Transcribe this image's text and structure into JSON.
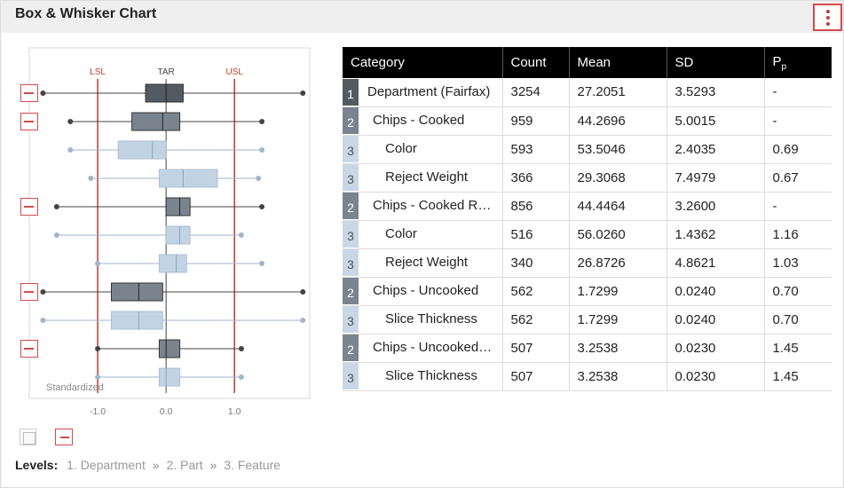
{
  "widget": {
    "title": "Box & Whisker Chart",
    "menu_icon": "vertical-ellipsis-icon"
  },
  "chart": {
    "spec_labels": {
      "lsl": "LSL",
      "tar": "TAR",
      "usl": "USL"
    },
    "spec_values": {
      "lsl": -1.0,
      "tar": 0.0,
      "usl": 1.0
    },
    "x_ticks": [
      "-1.0",
      "0.0",
      "1.0"
    ],
    "watermark": "Standardized",
    "colors": {
      "level1": "#525a62",
      "level2": "#7a848e",
      "level3": "#c2d4e4",
      "spec": "#c0392b"
    }
  },
  "chart_data": {
    "type": "box",
    "xlim": [
      -2.0,
      2.1
    ],
    "boxes": [
      {
        "level": 1,
        "whisker_low": -1.8,
        "q1": -0.3,
        "median": 0.0,
        "q3": 0.25,
        "whisker_high": 2.0,
        "collapsible": true
      },
      {
        "level": 2,
        "whisker_low": -1.4,
        "q1": -0.5,
        "median": -0.05,
        "q3": 0.2,
        "whisker_high": 1.4,
        "collapsible": true
      },
      {
        "level": 3,
        "whisker_low": -1.4,
        "q1": -0.7,
        "median": -0.2,
        "q3": 0.0,
        "whisker_high": 1.4,
        "collapsible": false
      },
      {
        "level": 3,
        "whisker_low": -1.1,
        "q1": -0.1,
        "median": 0.25,
        "q3": 0.75,
        "whisker_high": 1.35,
        "collapsible": false
      },
      {
        "level": 2,
        "whisker_low": -1.6,
        "q1": 0.0,
        "median": 0.2,
        "q3": 0.35,
        "whisker_high": 1.4,
        "collapsible": true
      },
      {
        "level": 3,
        "whisker_low": -1.6,
        "q1": 0.0,
        "median": 0.2,
        "q3": 0.35,
        "whisker_high": 1.1,
        "collapsible": false
      },
      {
        "level": 3,
        "whisker_low": -1.0,
        "q1": -0.1,
        "median": 0.15,
        "q3": 0.3,
        "whisker_high": 1.4,
        "collapsible": false
      },
      {
        "level": 2,
        "whisker_low": -1.8,
        "q1": -0.8,
        "median": -0.4,
        "q3": -0.05,
        "whisker_high": 2.0,
        "collapsible": true
      },
      {
        "level": 3,
        "whisker_low": -1.8,
        "q1": -0.8,
        "median": -0.4,
        "q3": -0.05,
        "whisker_high": 2.0,
        "collapsible": false
      },
      {
        "level": 2,
        "whisker_low": -1.0,
        "q1": -0.1,
        "median": 0.0,
        "q3": 0.2,
        "whisker_high": 1.1,
        "collapsible": true
      },
      {
        "level": 3,
        "whisker_low": -1.0,
        "q1": -0.1,
        "median": 0.0,
        "q3": 0.2,
        "whisker_high": 1.1,
        "collapsible": false
      }
    ]
  },
  "table": {
    "columns": [
      "Category",
      "Count",
      "Mean",
      "SD",
      "P",
      "p"
    ],
    "rows": [
      {
        "level": "1",
        "category": "Department (Fairfax)",
        "count": "3254",
        "mean": "27.2051",
        "sd": "3.5293",
        "pp": "-"
      },
      {
        "level": "2",
        "category": "Chips - Cooked",
        "count": "959",
        "mean": "44.2696",
        "sd": "5.0015",
        "pp": "-"
      },
      {
        "level": "3",
        "category": "Color",
        "count": "593",
        "mean": "53.5046",
        "sd": "2.4035",
        "pp": "0.69"
      },
      {
        "level": "3",
        "category": "Reject Weight",
        "count": "366",
        "mean": "29.3068",
        "sd": "7.4979",
        "pp": "0.67"
      },
      {
        "level": "2",
        "category": "Chips - Cooked Ridged",
        "count": "856",
        "mean": "44.4464",
        "sd": "3.2600",
        "pp": "-"
      },
      {
        "level": "3",
        "category": "Color",
        "count": "516",
        "mean": "56.0260",
        "sd": "1.4362",
        "pp": "1.16"
      },
      {
        "level": "3",
        "category": "Reject Weight",
        "count": "340",
        "mean": "26.8726",
        "sd": "4.8621",
        "pp": "1.03"
      },
      {
        "level": "2",
        "category": "Chips - Uncooked",
        "count": "562",
        "mean": "1.7299",
        "sd": "0.0240",
        "pp": "0.70"
      },
      {
        "level": "3",
        "category": "Slice Thickness",
        "count": "562",
        "mean": "1.7299",
        "sd": "0.0240",
        "pp": "0.70"
      },
      {
        "level": "2",
        "category": "Chips - Uncooked Ridg...",
        "count": "507",
        "mean": "3.2538",
        "sd": "0.0230",
        "pp": "1.45"
      },
      {
        "level": "3",
        "category": "Slice Thickness",
        "count": "507",
        "mean": "3.2538",
        "sd": "0.0230",
        "pp": "1.45"
      }
    ]
  },
  "footer": {
    "expand_all_icon": "expand-all-icon",
    "collapse_all_icon": "collapse-all-icon",
    "levels_label": "Levels:",
    "levels": [
      "1. Department",
      "2. Part",
      "3. Feature"
    ],
    "separator": "»"
  }
}
